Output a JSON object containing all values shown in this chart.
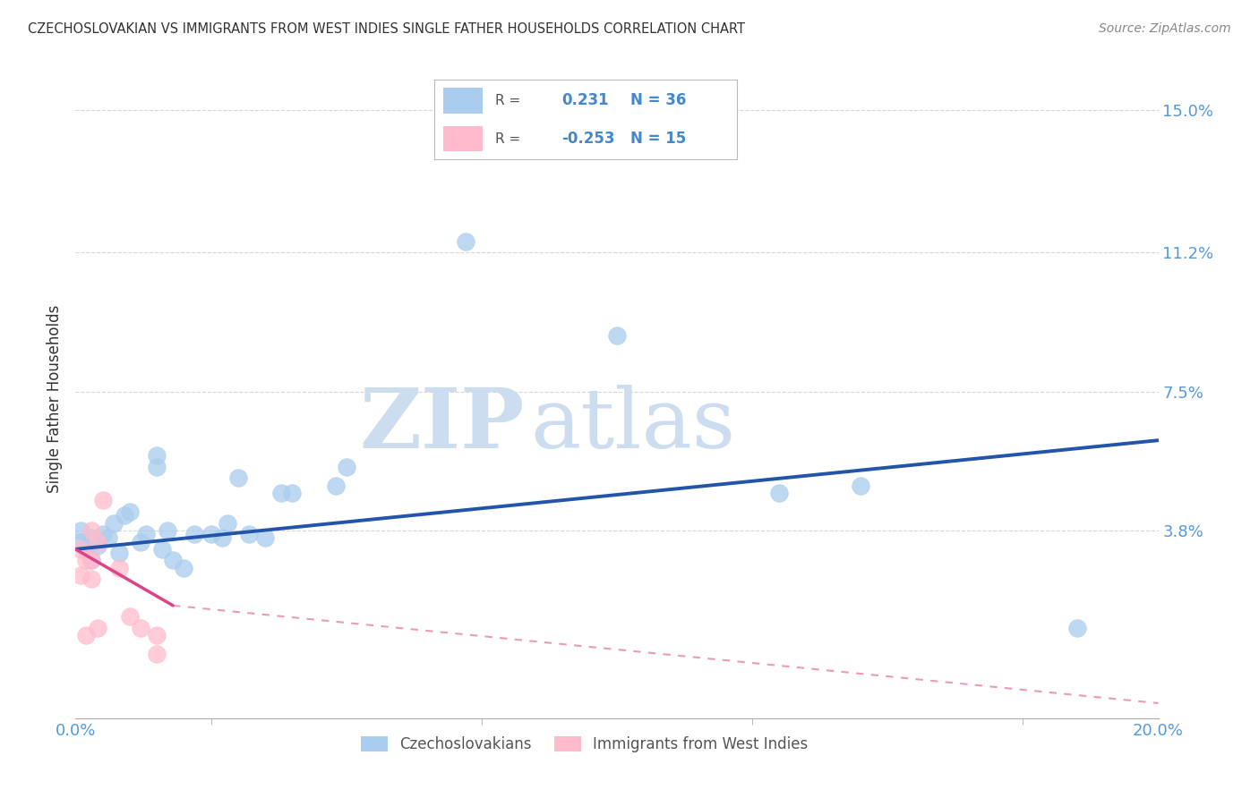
{
  "title": "CZECHOSLOVAKIAN VS IMMIGRANTS FROM WEST INDIES SINGLE FATHER HOUSEHOLDS CORRELATION CHART",
  "source": "Source: ZipAtlas.com",
  "ylabel": "Single Father Households",
  "xlim": [
    0.0,
    0.2
  ],
  "ylim": [
    -0.012,
    0.158
  ],
  "yticks": [
    0.038,
    0.075,
    0.112,
    0.15
  ],
  "ytick_labels": [
    "3.8%",
    "7.5%",
    "11.2%",
    "15.0%"
  ],
  "xticks": [
    0.0,
    0.05,
    0.1,
    0.15,
    0.2
  ],
  "xtick_labels": [
    "0.0%",
    "",
    "",
    "",
    "20.0%"
  ],
  "blue_scatter_x": [
    0.001,
    0.001,
    0.002,
    0.003,
    0.003,
    0.004,
    0.005,
    0.006,
    0.007,
    0.008,
    0.009,
    0.01,
    0.012,
    0.013,
    0.015,
    0.015,
    0.016,
    0.017,
    0.018,
    0.02,
    0.022,
    0.025,
    0.027,
    0.028,
    0.03,
    0.032,
    0.035,
    0.038,
    0.04,
    0.048,
    0.05,
    0.072,
    0.1,
    0.13,
    0.145,
    0.185
  ],
  "blue_scatter_y": [
    0.035,
    0.038,
    0.033,
    0.03,
    0.036,
    0.034,
    0.037,
    0.036,
    0.04,
    0.032,
    0.042,
    0.043,
    0.035,
    0.037,
    0.055,
    0.058,
    0.033,
    0.038,
    0.03,
    0.028,
    0.037,
    0.037,
    0.036,
    0.04,
    0.052,
    0.037,
    0.036,
    0.048,
    0.048,
    0.05,
    0.055,
    0.115,
    0.09,
    0.048,
    0.05,
    0.012
  ],
  "pink_scatter_x": [
    0.001,
    0.001,
    0.002,
    0.002,
    0.003,
    0.003,
    0.003,
    0.004,
    0.004,
    0.005,
    0.008,
    0.01,
    0.012,
    0.015,
    0.015
  ],
  "pink_scatter_y": [
    0.033,
    0.026,
    0.03,
    0.01,
    0.038,
    0.03,
    0.025,
    0.035,
    0.012,
    0.046,
    0.028,
    0.015,
    0.012,
    0.01,
    0.005
  ],
  "blue_line_x": [
    0.0,
    0.2
  ],
  "blue_line_y": [
    0.033,
    0.062
  ],
  "pink_solid_line_x": [
    0.0,
    0.018
  ],
  "pink_solid_line_y": [
    0.033,
    0.018
  ],
  "pink_dashed_line_x": [
    0.018,
    0.2
  ],
  "pink_dashed_line_y": [
    0.018,
    -0.008
  ],
  "blue_scatter_color": "#AACCEE",
  "pink_scatter_color": "#FFBBCC",
  "blue_line_color": "#2255AA",
  "pink_line_color": "#DD4488",
  "R_blue": "0.231",
  "N_blue": "36",
  "R_pink": "-0.253",
  "N_pink": "15",
  "legend_blue_label": "Czechoslovakians",
  "legend_pink_label": "Immigrants from West Indies",
  "watermark_zip": "ZIP",
  "watermark_atlas": "atlas",
  "background_color": "#ffffff",
  "grid_color": "#CCCCCC",
  "tick_color": "#5599DD",
  "label_color": "#333333"
}
